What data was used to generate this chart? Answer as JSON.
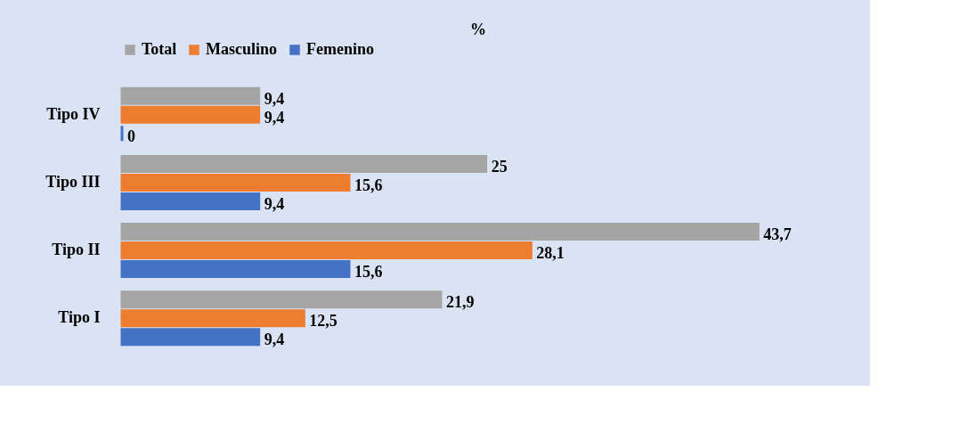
{
  "chart_data": {
    "type": "bar",
    "orientation": "horizontal",
    "title": "%",
    "categories": [
      "Tipo IV",
      "Tipo III",
      "Tipo II",
      "Tipo I"
    ],
    "series": [
      {
        "name": "Total",
        "color": "#a5a5a5",
        "values": [
          9.4,
          25,
          43.7,
          21.9
        ],
        "value_labels": [
          "9,4",
          "25",
          "43,7",
          "21,9"
        ]
      },
      {
        "name": "Masculino",
        "color": "#ed7d31",
        "values": [
          9.4,
          15.6,
          28.1,
          12.5
        ],
        "value_labels": [
          "9,4",
          "15,6",
          "28,1",
          "12,5"
        ]
      },
      {
        "name": "Femenino",
        "color": "#4472c4",
        "values": [
          0,
          9.4,
          15.6,
          9.4
        ],
        "value_labels": [
          "0",
          "9,4",
          "15,6",
          "9,4"
        ]
      }
    ],
    "legend": "top",
    "grid": false
  }
}
